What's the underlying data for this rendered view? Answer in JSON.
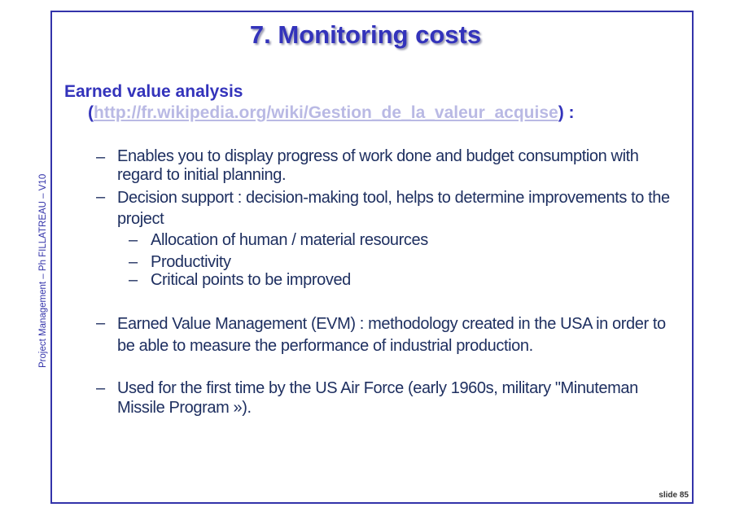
{
  "side_label": "Project Management – Ph FILLATREAU – V10",
  "title": "7. Monitoring costs",
  "heading": "Earned value analysis",
  "link_open": "(",
  "link_url": "http://fr.wikipedia.org/wiki/Gestion_de_la_valeur_acquise",
  "link_close": ") :",
  "bullets": {
    "b1": "Enables you to display progress of work done and budget consumption with regard to initial planning.",
    "b2": "Decision support : decision-making tool, helps to determine improvements to the project",
    "s1": "Allocation of human / material resources",
    "s2": "Productivity",
    "s3": "Critical points to be improved",
    "b3": "Earned Value Management (EVM) : methodology created in the USA in order to be able to measure the performance of industrial production.",
    "b4": "Used for the first time by the US Air Force (early 1960s, military \"Minuteman Missile Program »)."
  },
  "dash": "–",
  "slide_number": "slide 85"
}
